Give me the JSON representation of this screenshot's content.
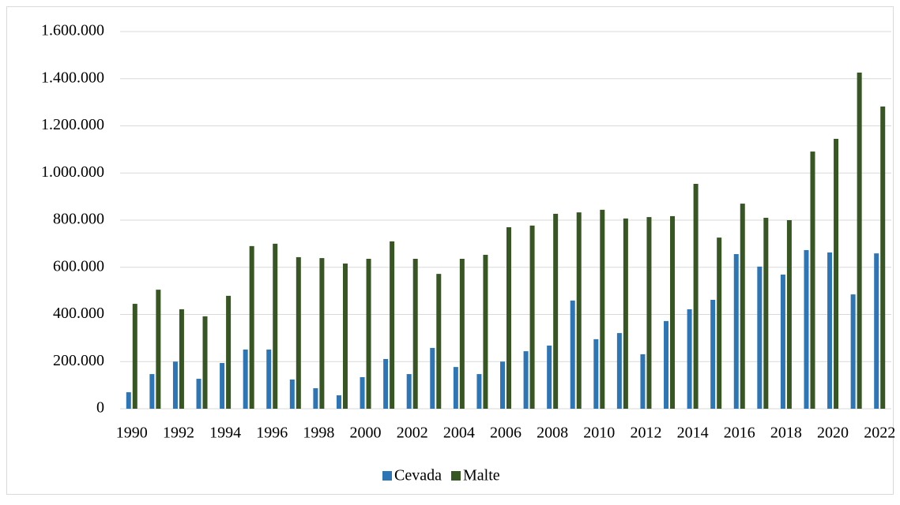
{
  "chart_data": {
    "type": "bar",
    "categories": [
      "1990",
      null,
      "1992",
      null,
      "1994",
      null,
      "1996",
      null,
      "1998",
      null,
      "2000",
      null,
      "2002",
      null,
      "2004",
      null,
      "2006",
      null,
      "2008",
      null,
      "2010",
      null,
      "2012",
      null,
      "2014",
      null,
      "2016",
      null,
      "2018",
      null,
      "2020",
      null,
      "2022"
    ],
    "series": [
      {
        "name": "Cevada",
        "color": "#2e75b6",
        "values": [
          70000,
          147000,
          200000,
          127000,
          194000,
          251000,
          251000,
          124000,
          87000,
          57000,
          134000,
          211000,
          147000,
          258000,
          177000,
          147000,
          200000,
          244000,
          268000,
          459000,
          295000,
          321000,
          231000,
          372000,
          422000,
          462000,
          656000,
          603000,
          569000,
          673000,
          663000,
          485000,
          659000
        ]
      },
      {
        "name": "Malte",
        "color": "#375623",
        "values": [
          445000,
          505000,
          422000,
          392000,
          479000,
          690000,
          700000,
          643000,
          639000,
          616000,
          636000,
          710000,
          636000,
          572000,
          636000,
          653000,
          770000,
          777000,
          827000,
          833000,
          844000,
          807000,
          813000,
          817000,
          954000,
          726000,
          870000,
          810000,
          800000,
          1091000,
          1145000,
          1426000,
          1282000
        ]
      }
    ],
    "ylim": [
      0,
      1600000
    ],
    "yticks": [
      0,
      {
        "value": 200000,
        "label": "200.000"
      },
      {
        "value": 400000,
        "label": "400.000"
      },
      {
        "value": 600000,
        "label": "600.000"
      },
      {
        "value": 800000,
        "label": "800.000"
      },
      {
        "value": 1000000,
        "label": "1.000.000"
      },
      {
        "value": 1200000,
        "label": "1.200.000"
      },
      {
        "value": 1400000,
        "label": "1.400.000"
      },
      {
        "value": 1600000,
        "label": "1.600.000"
      }
    ],
    "grid": true,
    "legend": "bottom"
  }
}
